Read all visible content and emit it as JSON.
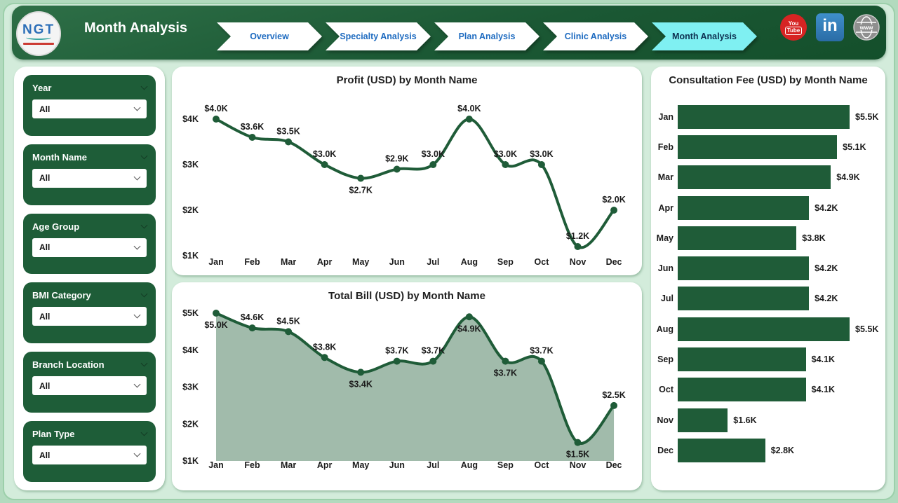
{
  "header": {
    "title": "Month Analysis",
    "logo_text": "NGT",
    "nav": [
      {
        "label": "Overview",
        "active": false
      },
      {
        "label": "Specialty Analysis",
        "active": false
      },
      {
        "label": "Plan Analysis",
        "active": false
      },
      {
        "label": "Clinic Analysis",
        "active": false
      },
      {
        "label": "Month Analysis",
        "active": true
      }
    ]
  },
  "social": {
    "youtube": {
      "line1": "You",
      "line2": "Tube"
    },
    "linkedin": "in",
    "website": "www"
  },
  "filters": [
    {
      "label": "Year",
      "value": "All"
    },
    {
      "label": "Month Name",
      "value": "All"
    },
    {
      "label": "Age Group",
      "value": "All"
    },
    {
      "label": "BMI Category",
      "value": "All"
    },
    {
      "label": "Branch Location",
      "value": "All"
    },
    {
      "label": "Plan Type",
      "value": "All"
    }
  ],
  "colors": {
    "accent_dark_green": "#1f5c38",
    "header_green": "#1b5834",
    "page_bg_light_green": "#d3ecdb",
    "area_fill_green": "rgba(31,92,56,0.42)",
    "nav_text_blue": "#1e6bc0",
    "active_tab_cyan": "#7ff0f2",
    "youtube_red": "#d62423",
    "linkedin_blue": "#2e77b5"
  },
  "chart_data": [
    {
      "id": "profit",
      "type": "line",
      "title": "Profit (USD) by Month Name",
      "categories": [
        "Jan",
        "Feb",
        "Mar",
        "Apr",
        "May",
        "Jun",
        "Jul",
        "Aug",
        "Sep",
        "Oct",
        "Nov",
        "Dec"
      ],
      "values": [
        4.0,
        3.6,
        3.5,
        3.0,
        2.7,
        2.9,
        3.0,
        4.0,
        3.0,
        3.0,
        1.2,
        2.0
      ],
      "unit": "K USD",
      "data_labels": [
        "$4.0K",
        "$3.6K",
        "$3.5K",
        "$3.0K",
        "$2.7K",
        "$2.9K",
        "$3.0K",
        "$4.0K",
        "$3.0K",
        "$3.0K",
        "$1.2K",
        "$2.0K"
      ],
      "label_positions": [
        "above",
        "above",
        "above",
        "above",
        "below",
        "above",
        "above",
        "above",
        "above",
        "above",
        "above",
        "above"
      ],
      "ylim": [
        1,
        4
      ],
      "ytick_values": [
        1,
        2,
        3,
        4
      ],
      "ytick_labels": [
        "$1K",
        "$2K",
        "$3K",
        "$4K"
      ],
      "grid": false,
      "legend": "none",
      "line_color": "#1f5c38"
    },
    {
      "id": "total_bill",
      "type": "area",
      "title": "Total Bill (USD) by Month Name",
      "categories": [
        "Jan",
        "Feb",
        "Mar",
        "Apr",
        "May",
        "Jun",
        "Jul",
        "Aug",
        "Sep",
        "Oct",
        "Nov",
        "Dec"
      ],
      "values": [
        5.0,
        4.6,
        4.5,
        3.8,
        3.4,
        3.7,
        3.7,
        4.9,
        3.7,
        3.7,
        1.5,
        2.5
      ],
      "unit": "K USD",
      "data_labels": [
        "$5.0K",
        "$4.6K",
        "$4.5K",
        "$3.8K",
        "$3.4K",
        "$3.7K",
        "$3.7K",
        "$4.9K",
        "$3.7K",
        "$3.7K",
        "$1.5K",
        "$2.5K"
      ],
      "label_positions": [
        "below",
        "above",
        "above",
        "above",
        "below",
        "above",
        "above",
        "below",
        "below",
        "above",
        "below",
        "above"
      ],
      "ylim": [
        1,
        5
      ],
      "ytick_values": [
        1,
        2,
        3,
        4,
        5
      ],
      "ytick_labels": [
        "$1K",
        "$2K",
        "$3K",
        "$4K",
        "$5K"
      ],
      "grid": false,
      "legend": "none",
      "line_color": "#1f5c38",
      "area_opacity": 0.42
    },
    {
      "id": "consultation_fee",
      "type": "bar",
      "title": "Consultation Fee (USD) by Month Name",
      "orientation": "horizontal",
      "categories": [
        "Jan",
        "Feb",
        "Mar",
        "Apr",
        "May",
        "Jun",
        "Jul",
        "Aug",
        "Sep",
        "Oct",
        "Nov",
        "Dec"
      ],
      "values": [
        5.5,
        5.1,
        4.9,
        4.2,
        3.8,
        4.2,
        4.2,
        5.5,
        4.1,
        4.1,
        1.6,
        2.8
      ],
      "unit": "K USD",
      "data_labels": [
        "$5.5K",
        "$5.1K",
        "$4.9K",
        "$4.2K",
        "$3.8K",
        "$4.2K",
        "$4.2K",
        "$5.5K",
        "$4.1K",
        "$4.1K",
        "$1.6K",
        "$2.8K"
      ],
      "xmax": 5.5,
      "grid": false,
      "legend": "none",
      "bar_color": "#1f5c38"
    }
  ]
}
